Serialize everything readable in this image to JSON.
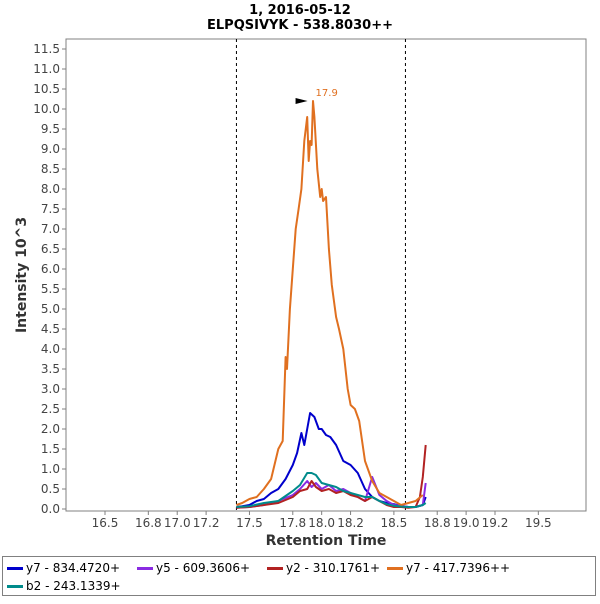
{
  "chart_data": {
    "type": "line",
    "title": "1, 2016-05-12",
    "subtitle": "ELPQSIVYK - 538.8030++",
    "xlabel": "Retention Time",
    "ylabel": "Intensity 10^3",
    "xlim": [
      16.23,
      19.83
    ],
    "ylim": [
      -0.05,
      11.75
    ],
    "xticks": [
      "16.5",
      "16.8",
      "17.0",
      "17.2",
      "17.5",
      "17.8",
      "18.0",
      "18.2",
      "18.5",
      "18.8",
      "19.0",
      "19.2",
      "19.5"
    ],
    "yticks": [
      "0.0",
      "0.5",
      "1.0",
      "1.5",
      "2.0",
      "2.5",
      "3.0",
      "3.5",
      "4.0",
      "4.5",
      "5.0",
      "5.5",
      "6.0",
      "6.5",
      "7.0",
      "7.5",
      "8.0",
      "8.5",
      "9.0",
      "9.5",
      "10.0",
      "10.5",
      "11.0",
      "11.5"
    ],
    "integration_bounds": [
      17.41,
      18.58
    ],
    "peak_annotation": {
      "label": "17.9",
      "x": 17.93,
      "y": 10.2
    },
    "series": [
      {
        "name": "y7 - 834.4720+",
        "color": "#0000cc",
        "x": [
          17.41,
          17.45,
          17.5,
          17.55,
          17.6,
          17.65,
          17.7,
          17.75,
          17.8,
          17.83,
          17.86,
          17.88,
          17.9,
          17.92,
          17.95,
          17.98,
          18.0,
          18.03,
          18.06,
          18.1,
          18.15,
          18.2,
          18.25,
          18.3,
          18.35,
          18.4,
          18.45,
          18.5,
          18.55,
          18.6,
          18.65,
          18.7,
          18.72
        ],
        "values": [
          0.05,
          0.07,
          0.1,
          0.2,
          0.25,
          0.4,
          0.5,
          0.75,
          1.1,
          1.4,
          1.9,
          1.6,
          2.0,
          2.4,
          2.3,
          2.0,
          2.0,
          1.85,
          1.8,
          1.6,
          1.2,
          1.1,
          0.9,
          0.5,
          0.3,
          0.2,
          0.15,
          0.12,
          0.08,
          0.05,
          0.05,
          0.1,
          0.3
        ]
      },
      {
        "name": "y5 - 609.3606+",
        "color": "#8a2be2",
        "x": [
          17.41,
          17.5,
          17.6,
          17.7,
          17.8,
          17.85,
          17.9,
          17.93,
          17.96,
          18.0,
          18.05,
          18.1,
          18.15,
          18.2,
          18.25,
          18.3,
          18.35,
          18.4,
          18.45,
          18.5,
          18.55,
          18.6,
          18.65,
          18.7,
          18.72
        ],
        "values": [
          0.03,
          0.05,
          0.1,
          0.2,
          0.35,
          0.5,
          0.7,
          0.55,
          0.65,
          0.5,
          0.6,
          0.45,
          0.5,
          0.4,
          0.3,
          0.2,
          0.8,
          0.35,
          0.2,
          0.1,
          0.08,
          0.05,
          0.05,
          0.1,
          0.65
        ]
      },
      {
        "name": "y2 - 310.1761+",
        "color": "#b22222",
        "x": [
          17.41,
          17.5,
          17.6,
          17.7,
          17.8,
          17.85,
          17.9,
          17.93,
          17.96,
          18.0,
          18.05,
          18.1,
          18.15,
          18.2,
          18.25,
          18.3,
          18.35,
          18.4,
          18.45,
          18.5,
          18.55,
          18.6,
          18.65,
          18.68,
          18.7,
          18.72
        ],
        "values": [
          0.03,
          0.05,
          0.1,
          0.15,
          0.3,
          0.45,
          0.5,
          0.7,
          0.55,
          0.45,
          0.5,
          0.4,
          0.45,
          0.35,
          0.3,
          0.2,
          0.3,
          0.2,
          0.1,
          0.05,
          0.05,
          0.03,
          0.05,
          0.3,
          0.8,
          1.6
        ]
      },
      {
        "name": "y7 - 417.7396++",
        "color": "#e07020",
        "x": [
          17.41,
          17.45,
          17.5,
          17.55,
          17.6,
          17.65,
          17.7,
          17.73,
          17.75,
          17.76,
          17.78,
          17.8,
          17.82,
          17.84,
          17.86,
          17.88,
          17.9,
          17.91,
          17.92,
          17.93,
          17.94,
          17.95,
          17.97,
          17.99,
          18.0,
          18.01,
          18.03,
          18.05,
          18.07,
          18.1,
          18.12,
          18.15,
          18.18,
          18.2,
          18.23,
          18.26,
          18.3,
          18.35,
          18.4,
          18.45,
          18.5,
          18.55,
          18.6,
          18.65,
          18.7
        ],
        "values": [
          0.1,
          0.15,
          0.25,
          0.3,
          0.5,
          0.75,
          1.5,
          1.7,
          3.8,
          3.5,
          5.0,
          6.0,
          7.0,
          7.5,
          8.0,
          9.2,
          9.8,
          8.7,
          9.2,
          9.1,
          10.2,
          9.8,
          8.5,
          7.8,
          8.0,
          7.7,
          7.8,
          6.5,
          5.6,
          4.8,
          4.5,
          4.0,
          3.0,
          2.6,
          2.5,
          2.2,
          1.2,
          0.7,
          0.4,
          0.3,
          0.2,
          0.1,
          0.15,
          0.2,
          0.35
        ]
      },
      {
        "name": "b2 - 243.1339+",
        "color": "#008b8b",
        "x": [
          17.41,
          17.5,
          17.6,
          17.7,
          17.8,
          17.85,
          17.9,
          17.93,
          17.96,
          18.0,
          18.05,
          18.1,
          18.15,
          18.2,
          18.25,
          18.3,
          18.35,
          18.4,
          18.45,
          18.5,
          18.55,
          18.6,
          18.65,
          18.7,
          18.72
        ],
        "values": [
          0.05,
          0.07,
          0.15,
          0.2,
          0.45,
          0.6,
          0.9,
          0.9,
          0.85,
          0.65,
          0.6,
          0.55,
          0.45,
          0.4,
          0.35,
          0.3,
          0.3,
          0.2,
          0.12,
          0.08,
          0.06,
          0.05,
          0.05,
          0.1,
          0.15
        ]
      }
    ]
  }
}
